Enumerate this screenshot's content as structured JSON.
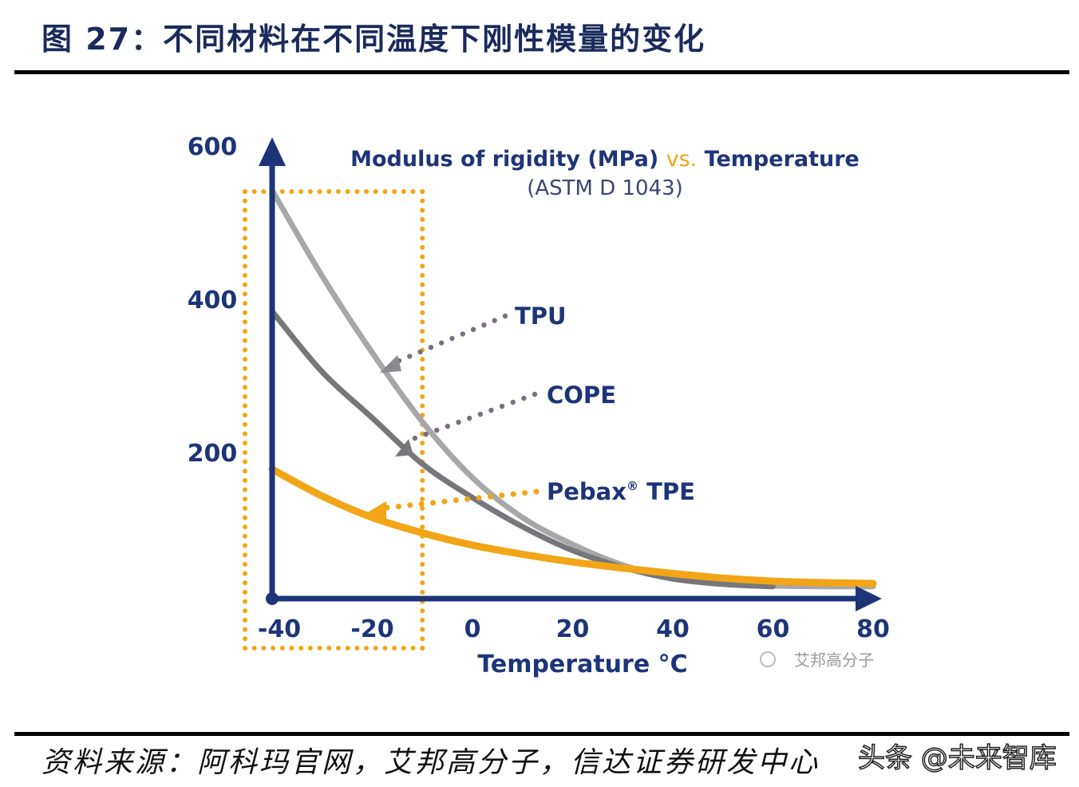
{
  "figure_title": "图 27：不同材料在不同温度下刚性模量的变化",
  "source": "资料来源：阿科玛官网，艾邦高分子，信达证券研发中心",
  "watermarks": {
    "chart": "艾邦高分子",
    "footer": "头条 @未来智库"
  },
  "colors": {
    "axis": "#1d3479",
    "TPU": "#a7a7aa",
    "COPE": "#77777b",
    "Pebax": "#f2a516"
  },
  "chart_data": {
    "type": "line",
    "title": "Modulus of rigidity (MPa)",
    "title_vs": "vs.",
    "title_end": "Temperature",
    "subtitle": "(ASTM D 1043)",
    "xlabel": "Temperature °C",
    "ylabel": "",
    "xlim": [
      -40,
      80
    ],
    "ylim": [
      0,
      600
    ],
    "xticks": [
      "-40",
      "-20",
      "0",
      "20",
      "40",
      "60",
      "80"
    ],
    "yticks": [
      "600",
      "400",
      "200"
    ],
    "grid": false,
    "highlight_range": [
      -40,
      -10
    ],
    "series": [
      {
        "name": "TPU",
        "x": [
          -40,
          -30,
          -20,
          -10,
          0,
          10,
          20,
          30,
          40,
          50,
          60,
          70,
          80
        ],
        "values": [
          537,
          425,
          325,
          235,
          162,
          110,
          75,
          48,
          32,
          24,
          21,
          20,
          20
        ]
      },
      {
        "name": "COPE",
        "x": [
          -40,
          -30,
          -20,
          -10,
          0,
          10,
          20,
          30,
          40,
          50,
          60
        ],
        "values": [
          379,
          300,
          240,
          180,
          136,
          98,
          67,
          45,
          30,
          23,
          20
        ]
      },
      {
        "name": "Pebax® TPE",
        "x": [
          -40,
          -30,
          -20,
          -10,
          0,
          10,
          20,
          30,
          40,
          50,
          60,
          70,
          80
        ],
        "values": [
          173,
          138,
          110,
          90,
          74,
          62,
          52,
          44,
          37,
          31,
          27,
          25,
          24
        ]
      }
    ],
    "labels": {
      "TPU": "TPU",
      "COPE": "COPE",
      "Pebax": "Pebax",
      "Pebax_suffix": "TPE",
      "Pebax_mark": "®"
    }
  }
}
